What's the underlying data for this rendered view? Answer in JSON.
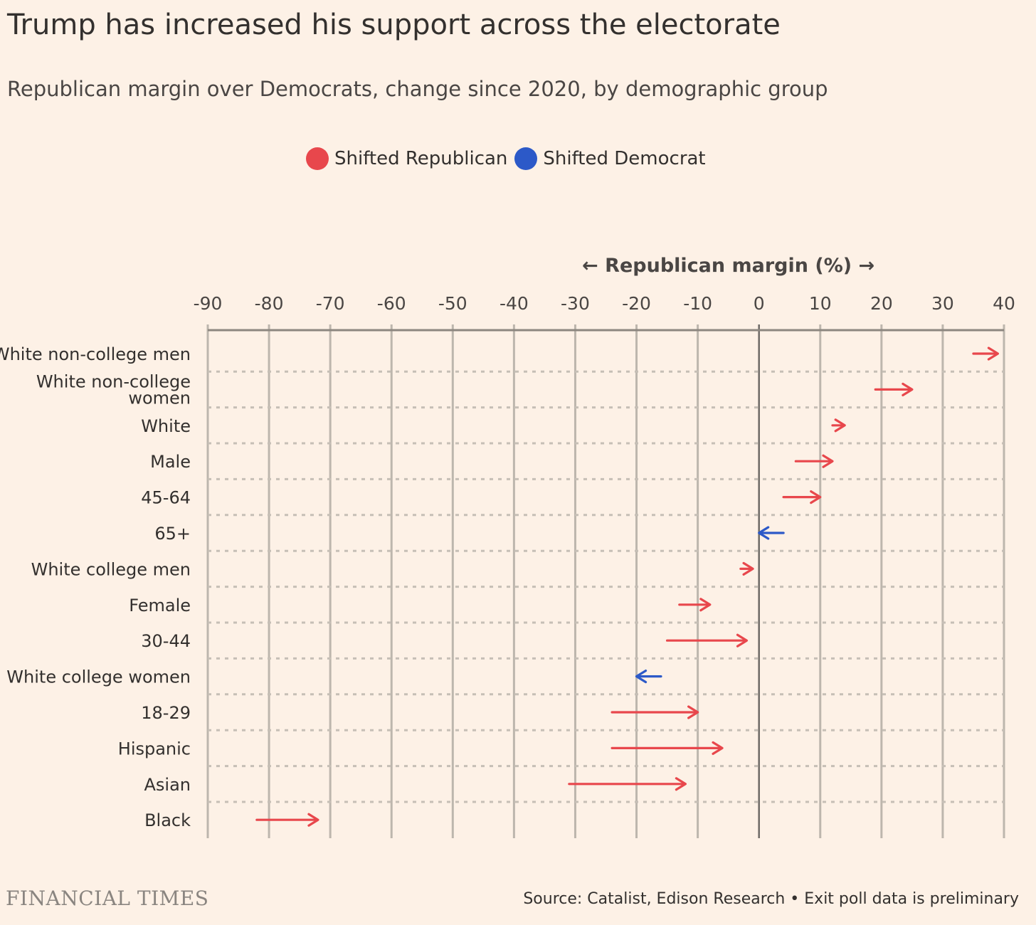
{
  "header": {
    "title": "Trump has increased his support across the electorate",
    "subtitle": "Republican margin over Democrats, change since 2020, by demographic group"
  },
  "legend": {
    "items": [
      {
        "label": "Shifted Republican",
        "color": "#e8474c"
      },
      {
        "label": "Shifted Democrat",
        "color": "#2c59c8"
      }
    ]
  },
  "footer": {
    "brand": "FINANCIAL TIMES",
    "source": "Source: Catalist, Edison Research • Exit poll data is preliminary"
  },
  "chart_data": {
    "type": "arrow",
    "xlabel": "← Republican margin (%) →",
    "xlim": [
      -90,
      40
    ],
    "xticks": [
      -90,
      -80,
      -70,
      -60,
      -50,
      -40,
      -30,
      -20,
      -10,
      0,
      10,
      20,
      30,
      40
    ],
    "grid": true,
    "series": [
      {
        "name": "Shifted Republican",
        "color": "#e8474c"
      },
      {
        "name": "Shifted Democrat",
        "color": "#2c59c8"
      }
    ],
    "rows": [
      {
        "group": "White non-college men",
        "lines": [
          "White non-college men"
        ],
        "from": 35,
        "to": 39,
        "shift": "Shifted Republican"
      },
      {
        "group": "White non-college women",
        "lines": [
          "White non-college",
          "women"
        ],
        "from": 19,
        "to": 25,
        "shift": "Shifted Republican"
      },
      {
        "group": "White",
        "lines": [
          "White"
        ],
        "from": 12,
        "to": 14,
        "shift": "Shifted Republican"
      },
      {
        "group": "Male",
        "lines": [
          "Male"
        ],
        "from": 6,
        "to": 12,
        "shift": "Shifted Republican"
      },
      {
        "group": "45-64",
        "lines": [
          "45-64"
        ],
        "from": 4,
        "to": 10,
        "shift": "Shifted Republican"
      },
      {
        "group": "65+",
        "lines": [
          "65+"
        ],
        "from": 4,
        "to": 0,
        "shift": "Shifted Democrat"
      },
      {
        "group": "White college men",
        "lines": [
          "White college men"
        ],
        "from": -3,
        "to": -1,
        "shift": "Shifted Republican"
      },
      {
        "group": "Female",
        "lines": [
          "Female"
        ],
        "from": -13,
        "to": -8,
        "shift": "Shifted Republican"
      },
      {
        "group": "30-44",
        "lines": [
          "30-44"
        ],
        "from": -15,
        "to": -2,
        "shift": "Shifted Republican"
      },
      {
        "group": "White college women",
        "lines": [
          "White college women"
        ],
        "from": -16,
        "to": -20,
        "shift": "Shifted Democrat"
      },
      {
        "group": "18-29",
        "lines": [
          "18-29"
        ],
        "from": -24,
        "to": -10,
        "shift": "Shifted Republican"
      },
      {
        "group": "Hispanic",
        "lines": [
          "Hispanic"
        ],
        "from": -24,
        "to": -6,
        "shift": "Shifted Republican"
      },
      {
        "group": "Asian",
        "lines": [
          "Asian"
        ],
        "from": -31,
        "to": -12,
        "shift": "Shifted Republican"
      },
      {
        "group": "Black",
        "lines": [
          "Black"
        ],
        "from": -82,
        "to": -72,
        "shift": "Shifted Republican"
      }
    ]
  }
}
